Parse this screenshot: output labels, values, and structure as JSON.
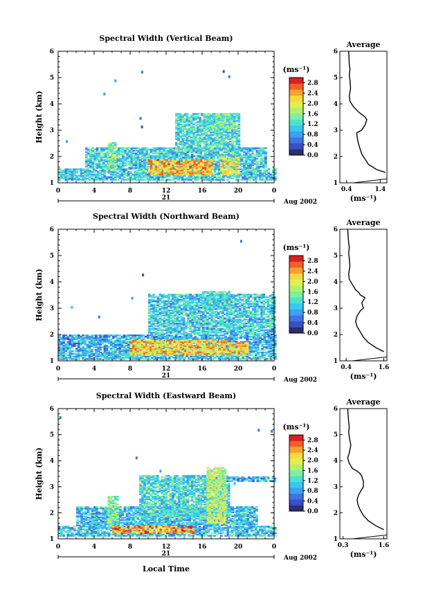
{
  "figure": {
    "xlabel": "Local Time",
    "date_label": "21",
    "month_label": "Aug 2002"
  },
  "colors": {
    "scale": [
      "#2b2f6b",
      "#3a4fc4",
      "#3f74e0",
      "#3f9ff0",
      "#39c8f0",
      "#4ee0d0",
      "#7ef0a0",
      "#b4f070",
      "#e0f050",
      "#f8d840",
      "#f8a030",
      "#f06028",
      "#d82020"
    ],
    "profile_line": "#000000"
  },
  "chart_data": [
    {
      "type": "heatmap",
      "title": "Spectral Width (Vertical Beam)",
      "xlabel": "",
      "ylabel": "Height (km)",
      "xlim": [
        0,
        24
      ],
      "ylim": [
        1,
        6
      ],
      "x_ticks": [
        "0",
        "4",
        "8",
        "12",
        "16",
        "20",
        "0"
      ],
      "y_ticks": [
        "1",
        "2",
        "3",
        "4",
        "5",
        "6"
      ],
      "colorbar": {
        "label": "(ms⁻¹)",
        "ticks": [
          "2.8",
          "2.4",
          "2.0",
          "1.6",
          "1.2",
          "0.8",
          "0.4",
          "0.0"
        ],
        "range": [
          0,
          3.0
        ]
      },
      "features": [
        {
          "t0": 0,
          "t1": 24,
          "h0": 1.1,
          "h1": 1.55,
          "value": 1.1
        },
        {
          "t0": 3,
          "t1": 23,
          "h0": 1.55,
          "h1": 2.3,
          "value": 1.1
        },
        {
          "t0": 10,
          "t1": 17,
          "h0": 1.3,
          "h1": 1.9,
          "value": 2.3
        },
        {
          "t0": 13,
          "t1": 20,
          "h0": 2.2,
          "h1": 3.6,
          "value": 1.2
        },
        {
          "t0": 16.5,
          "t1": 19.5,
          "h0": 3.0,
          "h1": 3.6,
          "value": 1.4
        },
        {
          "t0": 5.5,
          "t1": 6.3,
          "h0": 1.5,
          "h1": 2.5,
          "value": 1.6
        },
        {
          "t0": 18,
          "t1": 20,
          "h0": 1.3,
          "h1": 2.0,
          "value": 2.0
        }
      ],
      "profile": {
        "title": "Average",
        "xlabel": "(ms⁻¹)",
        "x_ticks": [
          "0.4",
          "1.4"
        ],
        "xlim": [
          0.2,
          1.6
        ],
        "y_ticks": [
          "1",
          "2",
          "3",
          "4",
          "5",
          "6"
        ],
        "ylim": [
          1,
          6
        ],
        "x": [
          1.55,
          1.3,
          1.05,
          0.95,
          0.85,
          0.8,
          0.75,
          0.72,
          0.7,
          0.85,
          0.95,
          1.0,
          0.95,
          0.85,
          0.75,
          0.6,
          0.5,
          0.48,
          0.52,
          0.5,
          0.48,
          0.5,
          0.48,
          0.47,
          0.46
        ],
        "h": [
          1.4,
          1.5,
          1.7,
          1.9,
          2.1,
          2.3,
          2.5,
          2.7,
          2.9,
          3.0,
          3.2,
          3.4,
          3.5,
          3.6,
          3.7,
          3.9,
          4.1,
          4.3,
          4.6,
          4.9,
          5.1,
          5.3,
          5.5,
          5.8,
          6.0
        ]
      }
    },
    {
      "type": "heatmap",
      "title": "Spectral Width (Northward Beam)",
      "xlabel": "",
      "ylabel": "Height (km)",
      "xlim": [
        0,
        24
      ],
      "ylim": [
        1,
        6
      ],
      "x_ticks": [
        "0",
        "4",
        "8",
        "12",
        "16",
        "20",
        "0"
      ],
      "y_ticks": [
        "1",
        "2",
        "3",
        "4",
        "5",
        "6"
      ],
      "colorbar": {
        "label": "(ms⁻¹)",
        "ticks": [
          "2.8",
          "2.4",
          "2.0",
          "1.6",
          "1.2",
          "0.8",
          "0.4",
          "0.0"
        ],
        "range": [
          0,
          3.0
        ]
      },
      "features": [
        {
          "t0": 0,
          "t1": 24,
          "h0": 1.05,
          "h1": 1.45,
          "value": 1.0
        },
        {
          "t0": 0,
          "t1": 24,
          "h0": 1.45,
          "h1": 2.0,
          "value": 0.9
        },
        {
          "t0": 8,
          "t1": 19,
          "h0": 1.2,
          "h1": 1.8,
          "value": 2.2
        },
        {
          "t0": 10,
          "t1": 24,
          "h0": 2.0,
          "h1": 3.5,
          "value": 1.1
        },
        {
          "t0": 16,
          "t1": 19,
          "h0": 3.0,
          "h1": 3.6,
          "value": 1.2
        },
        {
          "t0": 19,
          "t1": 21,
          "h0": 1.2,
          "h1": 1.7,
          "value": 2.2
        }
      ],
      "profile": {
        "title": "Average",
        "xlabel": "(ms⁻¹)",
        "x_ticks": [
          "0.4",
          "1.6"
        ],
        "xlim": [
          0.2,
          1.7
        ],
        "y_ticks": [
          "1",
          "2",
          "3",
          "4",
          "5",
          "6"
        ],
        "ylim": [
          1,
          6
        ],
        "x": [
          1.6,
          1.35,
          1.1,
          0.95,
          0.85,
          0.75,
          0.7,
          0.75,
          0.85,
          0.95,
          0.9,
          1.0,
          0.85,
          0.8,
          0.7,
          0.6,
          0.5,
          0.48,
          0.52,
          0.5,
          0.48,
          0.5,
          0.48,
          0.46,
          0.45
        ],
        "h": [
          1.35,
          1.5,
          1.7,
          1.9,
          2.1,
          2.3,
          2.5,
          2.7,
          2.9,
          3.0,
          3.2,
          3.4,
          3.5,
          3.6,
          3.7,
          3.9,
          4.1,
          4.3,
          4.6,
          4.9,
          5.1,
          5.3,
          5.5,
          5.8,
          6.0
        ]
      }
    },
    {
      "type": "heatmap",
      "title": "Spectral Width (Eastward Beam)",
      "xlabel": "Local Time",
      "ylabel": "Height (km)",
      "xlim": [
        0,
        24
      ],
      "ylim": [
        1,
        6
      ],
      "x_ticks": [
        "0",
        "4",
        "8",
        "12",
        "16",
        "20",
        "0"
      ],
      "y_ticks": [
        "1",
        "2",
        "3",
        "4",
        "5",
        "6"
      ],
      "colorbar": {
        "label": "(ms⁻¹)",
        "ticks": [
          "2.8",
          "2.4",
          "2.0",
          "1.6",
          "1.2",
          "0.8",
          "0.4",
          "0.0"
        ],
        "range": [
          0,
          3.0
        ]
      },
      "features": [
        {
          "t0": 0,
          "t1": 24,
          "h0": 1.1,
          "h1": 1.5,
          "value": 1.0
        },
        {
          "t0": 2,
          "t1": 22,
          "h0": 1.5,
          "h1": 2.2,
          "value": 1.0
        },
        {
          "t0": 6,
          "t1": 15,
          "h0": 1.2,
          "h1": 1.5,
          "value": 2.4
        },
        {
          "t0": 9,
          "t1": 19,
          "h0": 1.8,
          "h1": 3.4,
          "value": 1.2
        },
        {
          "t0": 17,
          "t1": 24,
          "h0": 3.2,
          "h1": 3.35,
          "value": 0.9
        },
        {
          "t0": 16.5,
          "t1": 18.5,
          "h0": 1.6,
          "h1": 3.7,
          "value": 1.8
        },
        {
          "t0": 5.5,
          "t1": 6.5,
          "h0": 1.5,
          "h1": 2.6,
          "value": 1.5
        }
      ],
      "profile": {
        "title": "Average",
        "xlabel": "(ms⁻¹)",
        "x_ticks": [
          "0.3",
          "1.6"
        ],
        "xlim": [
          0.2,
          1.7
        ],
        "y_ticks": [
          "1",
          "2",
          "3",
          "4",
          "5",
          "6"
        ],
        "ylim": [
          1,
          6
        ],
        "x": [
          1.6,
          1.35,
          1.1,
          0.95,
          0.85,
          0.78,
          0.75,
          0.8,
          0.9,
          0.95,
          0.95,
          0.9,
          0.85,
          0.75,
          0.6,
          0.5,
          0.45,
          0.5,
          0.55,
          0.5,
          0.48,
          0.5,
          0.48,
          0.46,
          0.45
        ],
        "h": [
          1.35,
          1.5,
          1.7,
          1.9,
          2.1,
          2.3,
          2.5,
          2.7,
          2.9,
          3.0,
          3.2,
          3.4,
          3.5,
          3.6,
          3.7,
          3.9,
          4.1,
          4.3,
          4.6,
          4.9,
          5.1,
          5.3,
          5.5,
          5.8,
          6.0
        ]
      }
    }
  ]
}
